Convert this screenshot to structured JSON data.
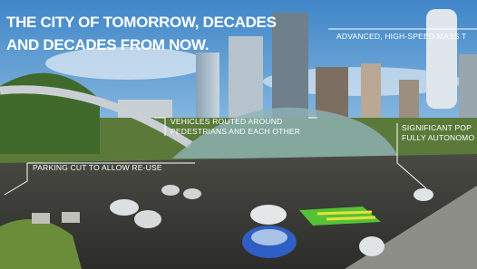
{
  "title": {
    "lines": [
      "THE CITY OF TOMORROW, DECADES",
      "AND DECADES FROM NOW."
    ]
  },
  "annotations": [
    {
      "lines": [
        "ADVANCED, HIGH-SPEED MASS T"
      ]
    },
    {
      "lines": [
        "VEHICLES ROUTED AROUND",
        "PEDESTRIANS AND EACH OTHER"
      ]
    },
    {
      "lines": [
        "SIGNIFICANT POP",
        "FULLY AUTONOMO"
      ]
    },
    {
      "lines": [
        "PARKING CUT TO ALLOW RE-USE"
      ]
    }
  ]
}
